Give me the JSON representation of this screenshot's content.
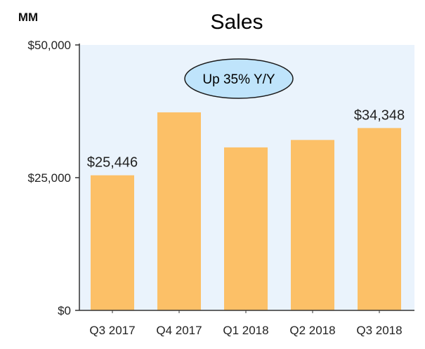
{
  "chart_data": {
    "type": "bar",
    "title": "Sales",
    "unit_label": "MM",
    "xlabel": "",
    "ylabel": "",
    "categories": [
      "Q3 2017",
      "Q4 2017",
      "Q1 2018",
      "Q2 2018",
      "Q3 2018"
    ],
    "values": [
      25446,
      37300,
      30700,
      32100,
      34348
    ],
    "data_labels": [
      "$25,446",
      "",
      "",
      "",
      "$34,348"
    ],
    "ylim": [
      0,
      50000
    ],
    "yticks": [
      0,
      25000,
      50000
    ],
    "ytick_labels": [
      "$0",
      "$25,000",
      "$50,000"
    ],
    "grid": false,
    "annotation": "Up 35% Y/Y",
    "colors": {
      "bar": "#FCC067",
      "plot_background": "#EAF3FC",
      "callout_fill": "#BFE4FB",
      "callout_stroke": "#1A1A1A",
      "axis": "#333333"
    }
  }
}
